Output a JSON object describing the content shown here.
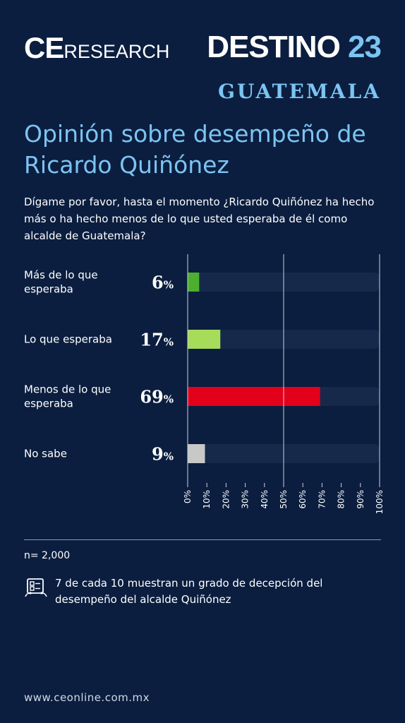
{
  "header": {
    "logo_ce": "CE",
    "logo_research": "RESEARCH",
    "destino_word": "DESTINO",
    "destino_number": "23",
    "region": "GUATEMALA"
  },
  "title": "Opinión sobre desempeño de Ricardo Quiñónez",
  "question": "Dígame por favor, hasta el momento ¿Ricardo Quiñónez ha hecho más o ha hecho menos de lo que usted esperaba de él como alcalde de Guatemala?",
  "chart_data": {
    "type": "bar",
    "orientation": "horizontal",
    "categories": [
      [
        "Más de lo que",
        "esperaba"
      ],
      [
        "Lo que esperaba"
      ],
      [
        "Menos de lo que",
        "esperaba"
      ],
      [
        "No sabe"
      ]
    ],
    "values": [
      6,
      17,
      69,
      9
    ],
    "value_suffix": "%",
    "bar_colors": [
      "#4caf2e",
      "#a6dc5a",
      "#e3001b",
      "#c8c8c8"
    ],
    "track_color": "#16294b",
    "xlim": [
      0,
      100
    ],
    "xticks": [
      "0%",
      "10%",
      "20%",
      "30%",
      "40%",
      "50%",
      "60%",
      "70%",
      "80%",
      "90%",
      "100%"
    ],
    "reference_lines": [
      0,
      50,
      100
    ],
    "grid": false,
    "legend": "none"
  },
  "footer": {
    "sample": "n= 2,000",
    "insight_icon": "survey-clipboard-icon",
    "insight": "7 de cada 10 muestran un grado de decepción del desempeño del alcalde Quiñónez",
    "url": "www.ceonline.com.mx"
  }
}
